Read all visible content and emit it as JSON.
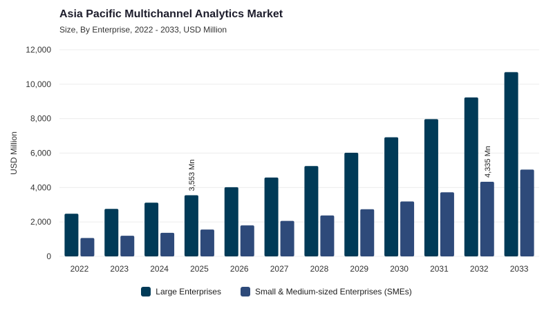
{
  "header": {
    "title": "Asia Pacific Multichannel Analytics Market",
    "subtitle": "Size, By Enterprise, 2022 - 2033, USD Million"
  },
  "colors": {
    "large": "#003a57",
    "sme": "#2e4a7a",
    "grid": "#ececec",
    "axis_text": "#333333"
  },
  "chart_data": {
    "type": "bar",
    "title": "Asia Pacific Multichannel Analytics Market",
    "subtitle": "Size, By Enterprise, 2022 - 2033, USD Million",
    "xlabel": "",
    "ylabel": "USD Million",
    "ylim": [
      0,
      12000
    ],
    "yticks": [
      0,
      2000,
      4000,
      6000,
      8000,
      10000,
      12000
    ],
    "ytick_labels": [
      "0",
      "2,000",
      "4,000",
      "6,000",
      "8,000",
      "10,000",
      "12,000"
    ],
    "grid": true,
    "legend_position": "bottom-center",
    "categories": [
      "2022",
      "2023",
      "2024",
      "2025",
      "2026",
      "2027",
      "2028",
      "2029",
      "2030",
      "2031",
      "2032",
      "2033"
    ],
    "series": [
      {
        "name": "Large Enterprises",
        "values": [
          2480,
          2760,
          3120,
          3553,
          4020,
          4580,
          5250,
          6020,
          6920,
          7970,
          9230,
          10700
        ]
      },
      {
        "name": "Small & Medium-sized Enterprises (SMEs)",
        "values": [
          1070,
          1200,
          1370,
          1560,
          1800,
          2060,
          2380,
          2740,
          3190,
          3720,
          4335,
          5040
        ]
      }
    ],
    "annotations": [
      {
        "series": 0,
        "category": "2025",
        "text": "3,553 Mn"
      },
      {
        "series": 1,
        "category": "2032",
        "text": "4,335 Mn"
      }
    ]
  }
}
